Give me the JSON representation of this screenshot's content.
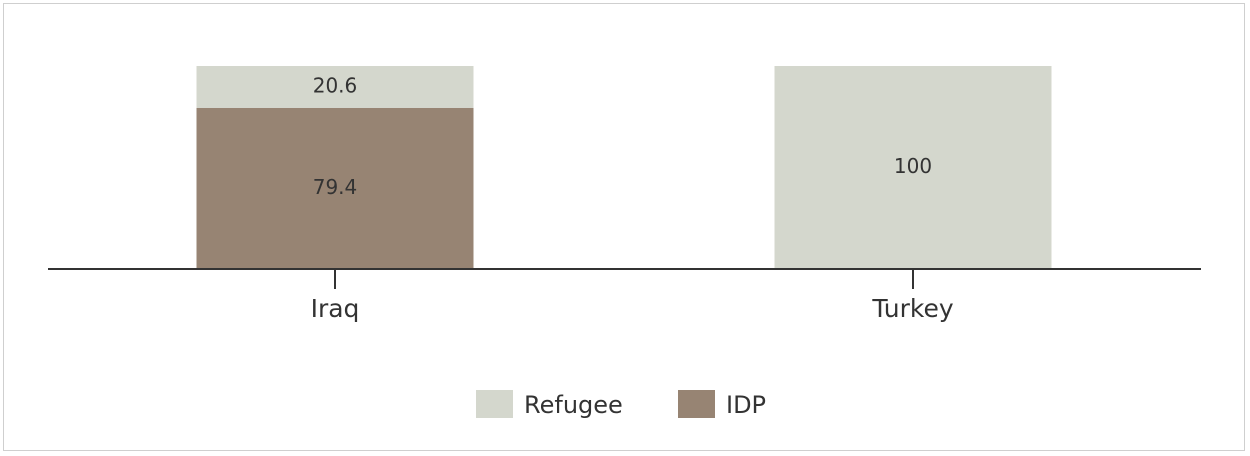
{
  "chart_data": {
    "type": "bar",
    "stacked": true,
    "normalized_percent": true,
    "categories": [
      "Iraq",
      "Turkey"
    ],
    "series": [
      {
        "name": "IDP",
        "values": [
          79.4,
          0
        ],
        "color": "#978473"
      },
      {
        "name": "Refugee",
        "values": [
          20.6,
          100
        ],
        "color": "#d4d7cd"
      }
    ],
    "data_labels": [
      {
        "category": "Iraq",
        "series": "Refugee",
        "text": "20.6"
      },
      {
        "category": "Iraq",
        "series": "IDP",
        "text": "79.4"
      },
      {
        "category": "Turkey",
        "series": "Refugee",
        "text": "100"
      }
    ],
    "legend": {
      "placement": "bottom-center",
      "items": [
        {
          "label": "Refugee",
          "color": "#d4d7cd"
        },
        {
          "label": "IDP",
          "color": "#978473"
        }
      ]
    },
    "ylim": [
      0,
      100
    ],
    "grid": false,
    "axis_color": "#333333"
  }
}
